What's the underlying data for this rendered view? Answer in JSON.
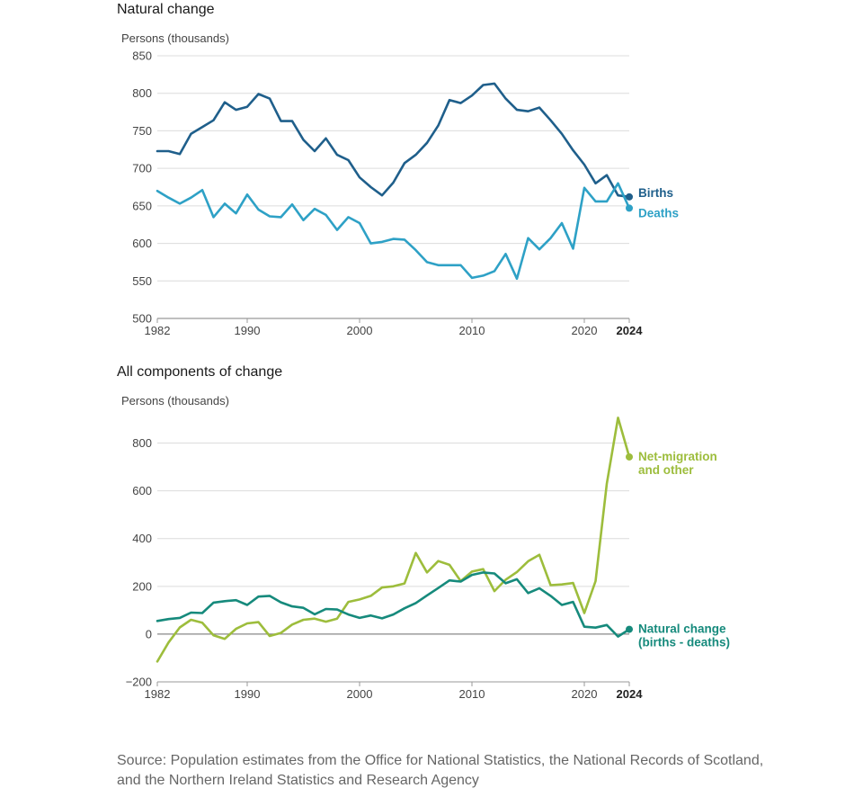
{
  "chart_data": [
    {
      "type": "line",
      "title": "Natural change",
      "ylabel": "Persons (thousands)",
      "ylim": [
        500,
        850
      ],
      "yticks": [
        500,
        550,
        600,
        650,
        700,
        750,
        800,
        850
      ],
      "xlim": [
        1982,
        2024
      ],
      "xticks": [
        1982,
        1990,
        2000,
        2010,
        2020,
        2024
      ],
      "x": [
        1982,
        1983,
        1984,
        1985,
        1986,
        1987,
        1988,
        1989,
        1990,
        1991,
        1992,
        1993,
        1994,
        1995,
        1996,
        1997,
        1998,
        1999,
        2000,
        2001,
        2002,
        2003,
        2004,
        2005,
        2006,
        2007,
        2008,
        2009,
        2010,
        2011,
        2012,
        2013,
        2014,
        2015,
        2016,
        2017,
        2018,
        2019,
        2020,
        2021,
        2022,
        2023,
        2024
      ],
      "series": [
        {
          "name": "Births",
          "color": "#1f5f8b",
          "values": [
            723,
            723,
            719,
            746,
            755,
            764,
            788,
            778,
            782,
            799,
            793,
            763,
            763,
            738,
            723,
            740,
            718,
            711,
            688,
            675,
            664,
            681,
            707,
            718,
            734,
            757,
            791,
            787,
            797,
            811,
            813,
            793,
            778,
            776,
            781,
            764,
            746,
            724,
            705,
            680,
            691,
            664,
            662
          ]
        },
        {
          "name": "Deaths",
          "color": "#2ea1c6",
          "values": [
            670,
            661,
            653,
            661,
            671,
            635,
            653,
            640,
            665,
            645,
            636,
            635,
            652,
            631,
            646,
            638,
            618,
            635,
            627,
            600,
            602,
            606,
            605,
            591,
            575,
            571,
            571,
            571,
            554,
            557,
            563,
            586,
            553,
            607,
            592,
            607,
            627,
            593,
            674,
            656,
            656,
            680,
            647
          ]
        }
      ]
    },
    {
      "type": "line",
      "title": "All components of change",
      "ylabel": "Persons (thousands)",
      "ylim": [
        -200,
        900
      ],
      "yticks": [
        -200,
        0,
        200,
        400,
        600,
        800
      ],
      "ytick_labels": [
        "−200",
        "0",
        "200",
        "400",
        "600",
        "800"
      ],
      "xlim": [
        1982,
        2024
      ],
      "xticks": [
        1982,
        1990,
        2000,
        2010,
        2020,
        2024
      ],
      "x": [
        1982,
        1983,
        1984,
        1985,
        1986,
        1987,
        1988,
        1989,
        1990,
        1991,
        1992,
        1993,
        1994,
        1995,
        1996,
        1997,
        1998,
        1999,
        2000,
        2001,
        2002,
        2003,
        2004,
        2005,
        2006,
        2007,
        2008,
        2009,
        2010,
        2011,
        2012,
        2013,
        2014,
        2015,
        2016,
        2017,
        2018,
        2019,
        2020,
        2021,
        2022,
        2023,
        2024
      ],
      "series": [
        {
          "name": "Net-migration and other",
          "label_lines": [
            "Net-migration",
            "and other"
          ],
          "color": "#9dbd3c",
          "values": [
            -115,
            -35,
            28,
            60,
            48,
            -5,
            -20,
            22,
            45,
            50,
            -8,
            5,
            40,
            60,
            65,
            52,
            65,
            135,
            145,
            160,
            195,
            200,
            212,
            340,
            258,
            306,
            290,
            222,
            262,
            272,
            180,
            228,
            260,
            305,
            332,
            205,
            208,
            214,
            88,
            222,
            630,
            906,
            742
          ]
        },
        {
          "name": "Natural change (births - deaths)",
          "label_lines": [
            "Natural change",
            "(births - deaths)"
          ],
          "color": "#168a7c",
          "values": [
            55,
            63,
            68,
            90,
            88,
            132,
            138,
            142,
            122,
            157,
            160,
            133,
            116,
            110,
            83,
            105,
            103,
            82,
            68,
            78,
            66,
            82,
            108,
            130,
            162,
            193,
            225,
            220,
            248,
            258,
            254,
            213,
            230,
            172,
            192,
            160,
            122,
            135,
            31,
            27,
            38,
            -10,
            20
          ]
        }
      ]
    }
  ],
  "source": "Source: Population estimates from the Office for National Statistics, the National Records of Scotland, and the Northern Ireland Statistics and Research Agency"
}
